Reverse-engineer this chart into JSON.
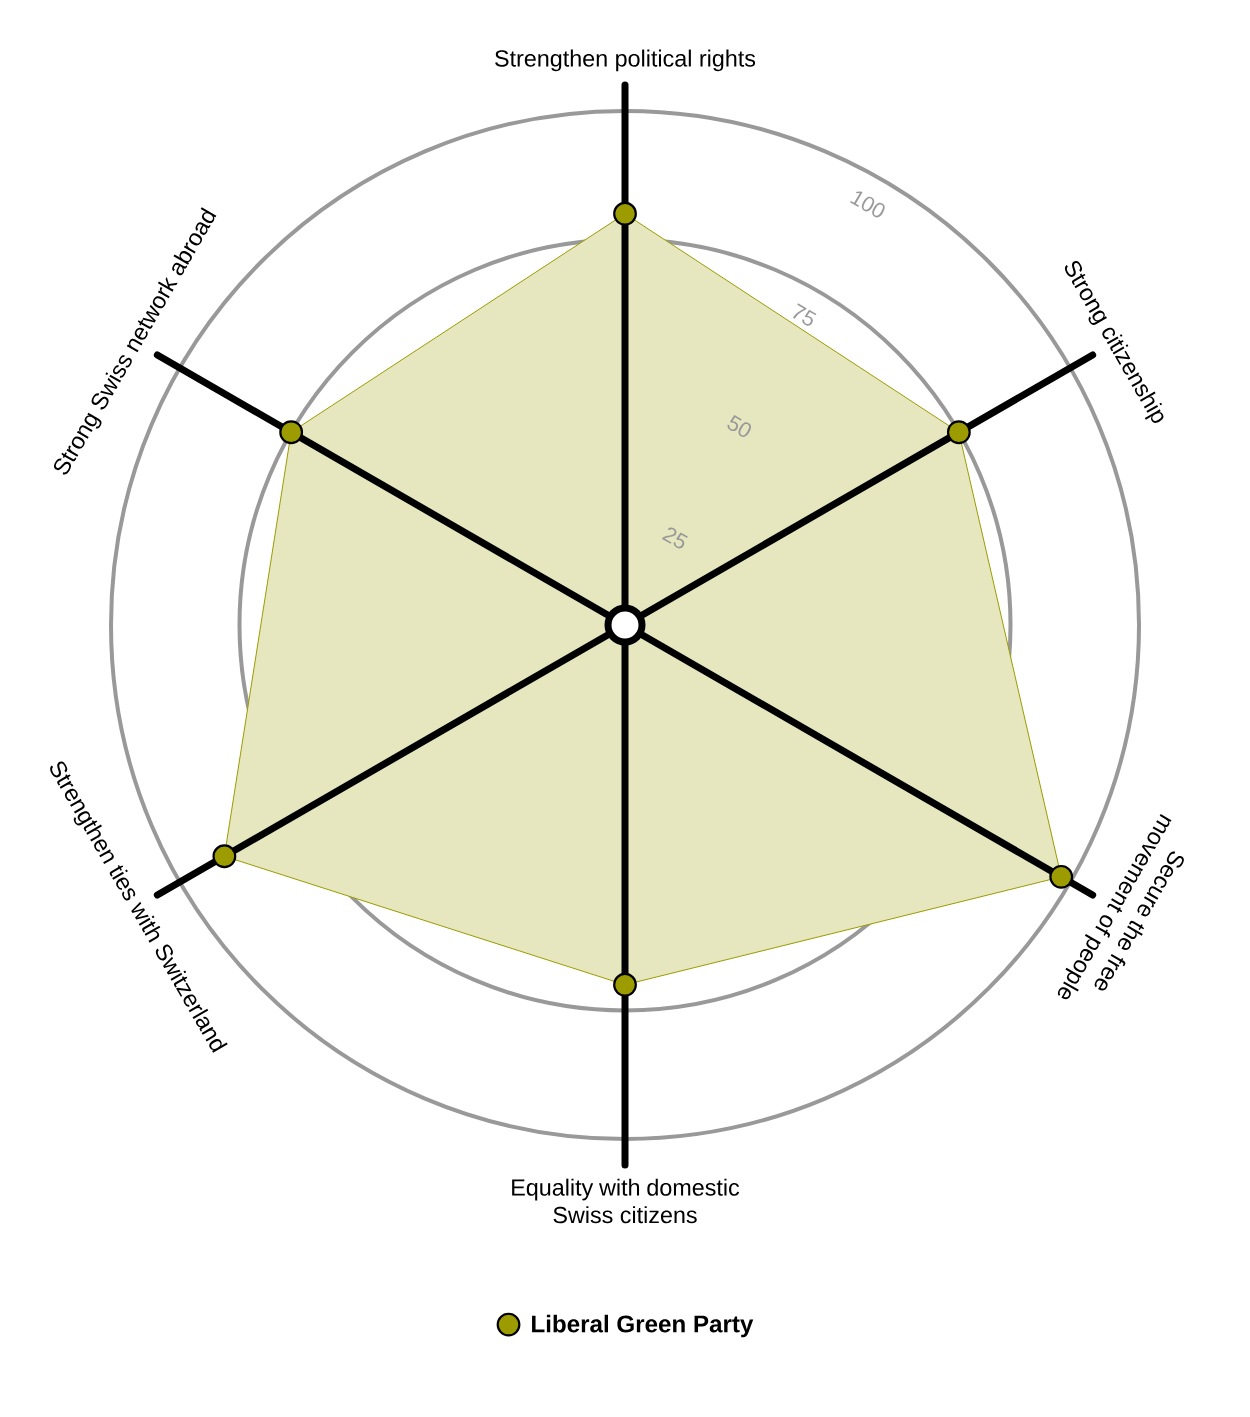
{
  "chart_data": {
    "type": "radar",
    "categories": [
      "Strengthen political rights",
      "Strong citizenship",
      "Secure the free movement of people",
      "Equality with domestic Swiss citizens",
      "Strengthen ties with Switzerland",
      "Strong Swiss network abroad"
    ],
    "series": [
      {
        "name": "Liberal Green Party",
        "color": "#9c9c00",
        "values": [
          80,
          75,
          98,
          70,
          90,
          75
        ]
      }
    ],
    "ylim": [
      0,
      100
    ],
    "yticks": [
      25,
      50,
      75,
      100
    ],
    "grid": true,
    "legend": "bottom",
    "marker": "circle"
  }
}
